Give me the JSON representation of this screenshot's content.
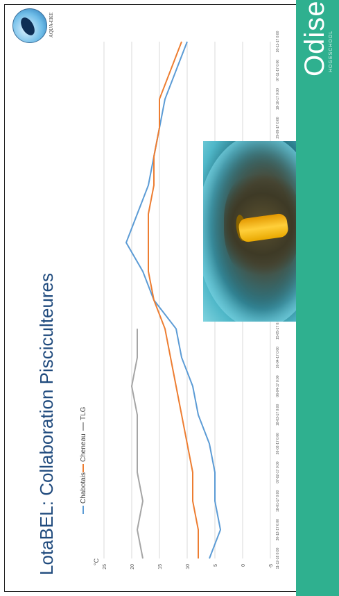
{
  "title": "LotaBEL: Collaboration Pisciculteures",
  "logo": {
    "text": "AQUA-EKE"
  },
  "brand": {
    "name": "Odisee",
    "subtitle": "HOGESCHOOL"
  },
  "colors": {
    "accent": "#2fb08f",
    "title": "#1f4a7d",
    "chabotais": "#5b9bd5",
    "cheneau": "#ed7d31",
    "tlg": "#a5a5a5"
  },
  "chart_data": {
    "type": "line",
    "ylabel": "°C",
    "ylim": [
      -5,
      25
    ],
    "yticks": [
      "25",
      "20",
      "15",
      "10",
      "5",
      "0",
      "-5"
    ],
    "x": [
      "11-12-18 0:00",
      "30-12-17 0:00",
      "18-01-17 0:00",
      "07-02-17 0:00",
      "26-02-17 0:00",
      "18-03-17 0:00",
      "06-04-17 0:00",
      "26-04-17 0:00",
      "15-05-17 0:00",
      "04-06-17 0:00",
      "23-06-17 0:00",
      "13-07-17 0:00",
      "01-08-17 0:00",
      "21-08-17 0:00",
      "09-09-17 0:00",
      "29-09-17 0:00",
      "18-10-17 0:00",
      "07-11-17 0:00",
      "26-11-17 0:00"
    ],
    "legend_position": "top",
    "series": [
      {
        "name": "Chabotais",
        "values": [
          6,
          4,
          5,
          5,
          6,
          8,
          9,
          11,
          12,
          16,
          18,
          21,
          19,
          17,
          16,
          15,
          14,
          12,
          10
        ]
      },
      {
        "name": "Cheneau",
        "values": [
          8,
          8,
          9,
          9,
          10,
          11,
          12,
          13,
          14,
          16,
          17,
          17,
          17,
          16,
          16,
          15,
          15,
          13,
          11
        ]
      },
      {
        "name": "TLG",
        "values": [
          18,
          19,
          18,
          19,
          19,
          19,
          20,
          19,
          19,
          null,
          null,
          null,
          null,
          null,
          null,
          null,
          null,
          null,
          null
        ]
      }
    ]
  }
}
